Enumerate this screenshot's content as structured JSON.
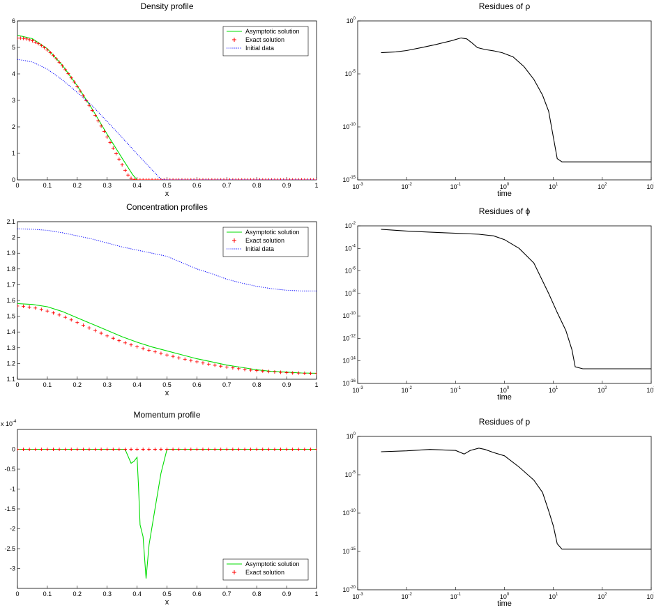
{
  "chart_data": [
    {
      "id": "density",
      "type": "line",
      "title": "Density profile",
      "xlabel": "x",
      "xlim": [
        0,
        1
      ],
      "ylim": [
        0,
        6
      ],
      "xticks": [
        "0",
        "0.1",
        "0.2",
        "0.3",
        "0.4",
        "0.5",
        "0.6",
        "0.7",
        "0.8",
        "0.9",
        "1"
      ],
      "yticks": [
        "0",
        "1",
        "2",
        "3",
        "4",
        "5",
        "6"
      ],
      "legend_position": "top-right",
      "series": [
        {
          "name": "Asymptotic solution",
          "style": "line",
          "color": "#00dd00",
          "x": [
            0,
            0.05,
            0.1,
            0.15,
            0.2,
            0.25,
            0.3,
            0.35,
            0.385,
            0.4,
            0.45,
            0.5,
            0.6,
            0.7,
            0.8,
            0.9,
            1
          ],
          "y": [
            5.46,
            5.33,
            4.95,
            4.33,
            3.55,
            2.67,
            1.72,
            0.82,
            0.2,
            0,
            0,
            0,
            0,
            0,
            0,
            0,
            0
          ]
        },
        {
          "name": "Exact solution",
          "style": "plus",
          "color": "#ff0000",
          "x": [
            0,
            0.01,
            0.02,
            0.03,
            0.04,
            0.05,
            0.06,
            0.07,
            0.08,
            0.09,
            0.1,
            0.11,
            0.12,
            0.13,
            0.14,
            0.15,
            0.16,
            0.17,
            0.18,
            0.19,
            0.2,
            0.21,
            0.22,
            0.23,
            0.24,
            0.25,
            0.26,
            0.27,
            0.28,
            0.29,
            0.3,
            0.31,
            0.32,
            0.33,
            0.34,
            0.35,
            0.36,
            0.37,
            0.38,
            0.39,
            0.4,
            0.41,
            0.42,
            0.43,
            0.44,
            0.45,
            0.46,
            0.47,
            0.48,
            0.49,
            0.5,
            0.51,
            0.52,
            0.53,
            0.54,
            0.55,
            0.56,
            0.57,
            0.58,
            0.59,
            0.6,
            0.61,
            0.62,
            0.63,
            0.64,
            0.65,
            0.66,
            0.67,
            0.68,
            0.69,
            0.7,
            0.71,
            0.72,
            0.73,
            0.74,
            0.75,
            0.76,
            0.77,
            0.78,
            0.79,
            0.8,
            0.81,
            0.82,
            0.83,
            0.84,
            0.85,
            0.86,
            0.87,
            0.88,
            0.89,
            0.9,
            0.91,
            0.92,
            0.93,
            0.94,
            0.95,
            0.96,
            0.97,
            0.98,
            0.99,
            1
          ],
          "y": [
            5.35,
            5.35,
            5.34,
            5.32,
            5.29,
            5.25,
            5.2,
            5.14,
            5.07,
            4.99,
            4.9,
            4.8,
            4.69,
            4.57,
            4.44,
            4.3,
            4.16,
            4.01,
            3.85,
            3.69,
            3.52,
            3.35,
            3.17,
            2.99,
            2.81,
            2.62,
            2.43,
            2.23,
            2.03,
            1.83,
            1.62,
            1.41,
            1.2,
            0.99,
            0.78,
            0.57,
            0.36,
            0.18,
            0.06,
            0.01,
            0,
            0,
            0,
            0,
            0,
            0,
            0,
            0,
            0,
            0,
            0,
            0,
            0,
            0,
            0,
            0,
            0,
            0,
            0,
            0,
            0,
            0,
            0,
            0,
            0,
            0,
            0,
            0,
            0,
            0,
            0,
            0,
            0,
            0,
            0,
            0,
            0,
            0,
            0,
            0,
            0,
            0,
            0,
            0,
            0,
            0,
            0,
            0,
            0,
            0,
            0,
            0,
            0,
            0,
            0,
            0,
            0,
            0,
            0,
            0,
            0
          ]
        },
        {
          "name": "Initial data",
          "style": "dotted",
          "color": "#0000ff",
          "x": [
            0,
            0.05,
            0.1,
            0.15,
            0.2,
            0.25,
            0.3,
            0.35,
            0.4,
            0.45,
            0.48,
            0.5,
            0.6,
            0.7,
            0.8,
            0.9,
            1
          ],
          "y": [
            4.55,
            4.45,
            4.18,
            3.78,
            3.3,
            2.8,
            2.2,
            1.6,
            0.98,
            0.38,
            0.02,
            0,
            0,
            0,
            0,
            0,
            0
          ]
        }
      ]
    },
    {
      "id": "concentration",
      "type": "line",
      "title": "Concentration profiles",
      "xlabel": "x",
      "xlim": [
        0,
        1
      ],
      "ylim": [
        1.1,
        2.1
      ],
      "xticks": [
        "0",
        "0.1",
        "0.2",
        "0.3",
        "0.4",
        "0.5",
        "0.6",
        "0.7",
        "0.8",
        "0.9",
        "1"
      ],
      "yticks": [
        "1.1",
        "1.2",
        "1.3",
        "1.4",
        "1.5",
        "1.6",
        "1.7",
        "1.8",
        "1.9",
        "2",
        "2.1"
      ],
      "legend_position": "top-right",
      "series": [
        {
          "name": "Asymptotic solution",
          "style": "line",
          "color": "#00dd00",
          "x": [
            0,
            0.05,
            0.1,
            0.15,
            0.2,
            0.25,
            0.3,
            0.35,
            0.4,
            0.45,
            0.5,
            0.55,
            0.6,
            0.65,
            0.7,
            0.75,
            0.8,
            0.85,
            0.9,
            0.95,
            1
          ],
          "y": [
            1.58,
            1.575,
            1.56,
            1.53,
            1.49,
            1.45,
            1.41,
            1.37,
            1.335,
            1.305,
            1.28,
            1.255,
            1.23,
            1.21,
            1.19,
            1.175,
            1.16,
            1.15,
            1.145,
            1.14,
            1.138
          ]
        },
        {
          "name": "Exact solution",
          "style": "plus",
          "color": "#ff0000",
          "x": [
            0,
            0.02,
            0.04,
            0.06,
            0.08,
            0.1,
            0.12,
            0.14,
            0.16,
            0.18,
            0.2,
            0.22,
            0.24,
            0.26,
            0.28,
            0.3,
            0.32,
            0.34,
            0.36,
            0.38,
            0.4,
            0.42,
            0.44,
            0.46,
            0.48,
            0.5,
            0.52,
            0.54,
            0.56,
            0.58,
            0.6,
            0.62,
            0.64,
            0.66,
            0.68,
            0.7,
            0.72,
            0.74,
            0.76,
            0.78,
            0.8,
            0.82,
            0.84,
            0.86,
            0.88,
            0.9,
            0.92,
            0.94,
            0.96,
            0.98,
            1
          ],
          "y": [
            1.565,
            1.563,
            1.558,
            1.552,
            1.543,
            1.533,
            1.521,
            1.508,
            1.493,
            1.477,
            1.46,
            1.443,
            1.426,
            1.409,
            1.392,
            1.375,
            1.36,
            1.345,
            1.331,
            1.318,
            1.306,
            1.295,
            1.284,
            1.274,
            1.264,
            1.254,
            1.245,
            1.236,
            1.227,
            1.219,
            1.211,
            1.203,
            1.196,
            1.189,
            1.183,
            1.177,
            1.172,
            1.167,
            1.162,
            1.158,
            1.155,
            1.152,
            1.149,
            1.146,
            1.144,
            1.142,
            1.14,
            1.139,
            1.138,
            1.137,
            1.137
          ]
        },
        {
          "name": "Initial data",
          "style": "dotted",
          "color": "#0000ff",
          "x": [
            0,
            0.05,
            0.1,
            0.15,
            0.2,
            0.25,
            0.3,
            0.35,
            0.4,
            0.45,
            0.5,
            0.55,
            0.6,
            0.65,
            0.7,
            0.75,
            0.8,
            0.85,
            0.9,
            0.95,
            1
          ],
          "y": [
            2.055,
            2.052,
            2.045,
            2.03,
            2.01,
            1.99,
            1.965,
            1.94,
            1.92,
            1.9,
            1.88,
            1.84,
            1.8,
            1.77,
            1.735,
            1.71,
            1.69,
            1.675,
            1.665,
            1.66,
            1.66
          ]
        }
      ]
    },
    {
      "id": "momentum",
      "type": "line",
      "title": "Momentum profile",
      "xlabel": "x",
      "xlim": [
        0,
        1
      ],
      "ylim": [
        -3.5,
        0.5
      ],
      "y_multiplier": "x 10",
      "y_multiplier_exp": "-4",
      "xticks": [
        "0",
        "0.1",
        "0.2",
        "0.3",
        "0.4",
        "0.5",
        "0.6",
        "0.7",
        "0.8",
        "0.9",
        "1"
      ],
      "yticks": [
        "-3",
        "-2.5",
        "-2",
        "-1.5",
        "-1",
        "-0.5",
        "0"
      ],
      "legend_position": "bottom-right",
      "series": [
        {
          "name": "Asymptotic solution",
          "style": "line",
          "color": "#00dd00",
          "x": [
            0,
            0.36,
            0.38,
            0.39,
            0.4,
            0.405,
            0.41,
            0.42,
            0.43,
            0.44,
            0.46,
            0.48,
            0.5,
            0.52,
            1
          ],
          "y": [
            0,
            0,
            -0.35,
            -0.3,
            -0.2,
            -0.95,
            -1.9,
            -2.2,
            -3.25,
            -2.4,
            -1.5,
            -0.6,
            0,
            0,
            0
          ]
        },
        {
          "name": "Exact solution",
          "style": "plus",
          "color": "#ff0000",
          "x": [
            0,
            0.02,
            0.04,
            0.06,
            0.08,
            0.1,
            0.12,
            0.14,
            0.16,
            0.18,
            0.2,
            0.22,
            0.24,
            0.26,
            0.28,
            0.3,
            0.32,
            0.34,
            0.36,
            0.38,
            0.4,
            0.42,
            0.44,
            0.46,
            0.48,
            0.5,
            0.52,
            0.54,
            0.56,
            0.58,
            0.6,
            0.62,
            0.64,
            0.66,
            0.68,
            0.7,
            0.72,
            0.74,
            0.76,
            0.78,
            0.8,
            0.82,
            0.84,
            0.86,
            0.88,
            0.9,
            0.92,
            0.94,
            0.96,
            0.98,
            1
          ],
          "y": [
            0,
            0,
            0,
            0,
            0,
            0,
            0,
            0,
            0,
            0,
            0,
            0,
            0,
            0,
            0,
            0,
            0,
            0,
            0,
            0,
            0,
            0,
            0,
            0,
            0,
            0,
            0,
            0,
            0,
            0,
            0,
            0,
            0,
            0,
            0,
            0,
            0,
            0,
            0,
            0,
            0,
            0,
            0,
            0,
            0,
            0,
            0,
            0,
            0,
            0,
            0
          ]
        }
      ]
    },
    {
      "id": "res-rho",
      "type": "line",
      "title": "Residues of ρ",
      "xlabel": "time",
      "xscale": "log",
      "yscale": "log",
      "xlim": [
        0.001,
        1000
      ],
      "ylim": [
        1e-15,
        1
      ],
      "xtick_exps": [
        "-3",
        "-2",
        "-1",
        "0",
        "1",
        "2",
        "3"
      ],
      "ytick_exps": [
        "0",
        "-5",
        "-10",
        "-15"
      ],
      "series": [
        {
          "color": "#000000",
          "x": [
            0.003,
            0.006,
            0.01,
            0.02,
            0.04,
            0.08,
            0.13,
            0.17,
            0.22,
            0.28,
            0.4,
            0.6,
            0.9,
            1.5,
            2.5,
            4,
            6,
            8,
            10,
            12,
            15,
            30,
            60,
            100,
            300,
            1000
          ],
          "y": [
            0.001,
            0.0012,
            0.0016,
            0.003,
            0.006,
            0.013,
            0.025,
            0.02,
            0.008,
            0.003,
            0.002,
            0.0015,
            0.001,
            0.0004,
            5e-05,
            3e-06,
            1e-07,
            3e-09,
            1e-11,
            1e-13,
            5e-14,
            5e-14,
            5e-14,
            5e-14,
            5e-14,
            5e-14
          ]
        }
      ]
    },
    {
      "id": "res-phi",
      "type": "line",
      "title": "Residues of ϕ",
      "xlabel": "time",
      "xscale": "log",
      "yscale": "log",
      "xlim": [
        0.001,
        1000
      ],
      "ylim": [
        1e-16,
        0.01
      ],
      "xtick_exps": [
        "-3",
        "-2",
        "-1",
        "0",
        "1",
        "2",
        "3"
      ],
      "ytick_exps": [
        "-2",
        "-4",
        "-6",
        "-8",
        "-10",
        "-12",
        "-14",
        "-16"
      ],
      "series": [
        {
          "color": "#000000",
          "x": [
            0.003,
            0.01,
            0.05,
            0.1,
            0.3,
            0.6,
            1,
            2,
            4,
            8,
            12,
            18,
            24,
            28,
            40,
            100,
            300,
            1000
          ],
          "y": [
            0.005,
            0.0035,
            0.0025,
            0.0022,
            0.0018,
            0.0013,
            0.0006,
            0.0001,
            5e-06,
            1e-08,
            2e-10,
            5e-12,
            1e-13,
            3e-15,
            2e-15,
            2e-15,
            2e-15,
            2e-15
          ]
        }
      ]
    },
    {
      "id": "res-p",
      "type": "line",
      "title": "Residues of p",
      "xlabel": "time",
      "xscale": "log",
      "yscale": "log",
      "xlim": [
        0.001,
        1000
      ],
      "ylim": [
        1e-20,
        1
      ],
      "xtick_exps": [
        "-3",
        "-2",
        "-1",
        "0",
        "1",
        "2",
        "3"
      ],
      "ytick_exps": [
        "0",
        "-5",
        "-10",
        "-15",
        "-20"
      ],
      "series": [
        {
          "color": "#000000",
          "x": [
            0.003,
            0.01,
            0.03,
            0.1,
            0.15,
            0.2,
            0.3,
            0.4,
            0.6,
            1,
            2,
            4,
            6,
            8,
            10,
            12,
            15,
            30,
            100,
            1000
          ],
          "y": [
            0.01,
            0.013,
            0.02,
            0.015,
            0.005,
            0.015,
            0.03,
            0.02,
            0.008,
            0.003,
            0.0001,
            2e-06,
            5e-08,
            2e-10,
            2e-12,
            1e-14,
            2e-15,
            2e-15,
            2e-15,
            2e-15
          ]
        }
      ]
    }
  ]
}
